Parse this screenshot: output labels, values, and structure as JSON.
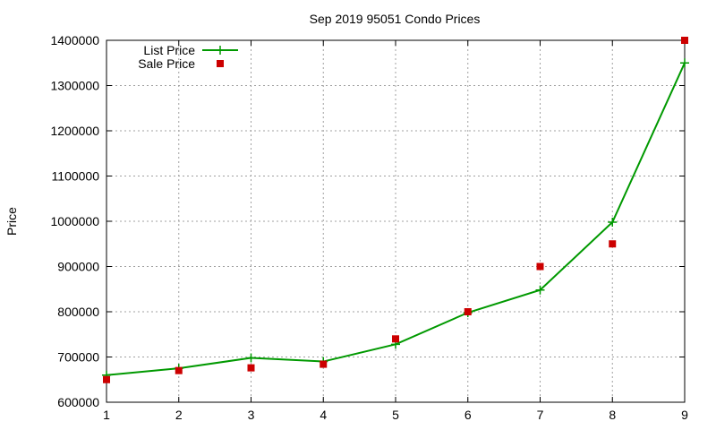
{
  "chart_data": {
    "type": "line",
    "title": "Sep 2019 95051 Condo Prices",
    "xlabel": "",
    "ylabel": "Price",
    "x": [
      1,
      2,
      3,
      4,
      5,
      6,
      7,
      8,
      9
    ],
    "xlim": [
      1,
      9
    ],
    "ylim": [
      600000,
      1400000
    ],
    "x_ticks": [
      "1",
      "2",
      "3",
      "4",
      "5",
      "6",
      "7",
      "8",
      "9"
    ],
    "y_ticks": [
      "600000",
      "700000",
      "800000",
      "900000",
      "1000000",
      "1100000",
      "1200000",
      "1300000",
      "1400000"
    ],
    "grid": true,
    "legend_position": "top-left",
    "series": [
      {
        "name": "List Price",
        "style": "line-with-plus-markers",
        "color": "#009900",
        "values": [
          660000,
          675000,
          698000,
          690000,
          728000,
          798000,
          848000,
          998000,
          1350000
        ]
      },
      {
        "name": "Sale Price",
        "style": "square-markers",
        "color": "#cc0000",
        "values": [
          650000,
          670000,
          676000,
          684000,
          740000,
          800000,
          900000,
          950000,
          1400000
        ]
      }
    ]
  }
}
